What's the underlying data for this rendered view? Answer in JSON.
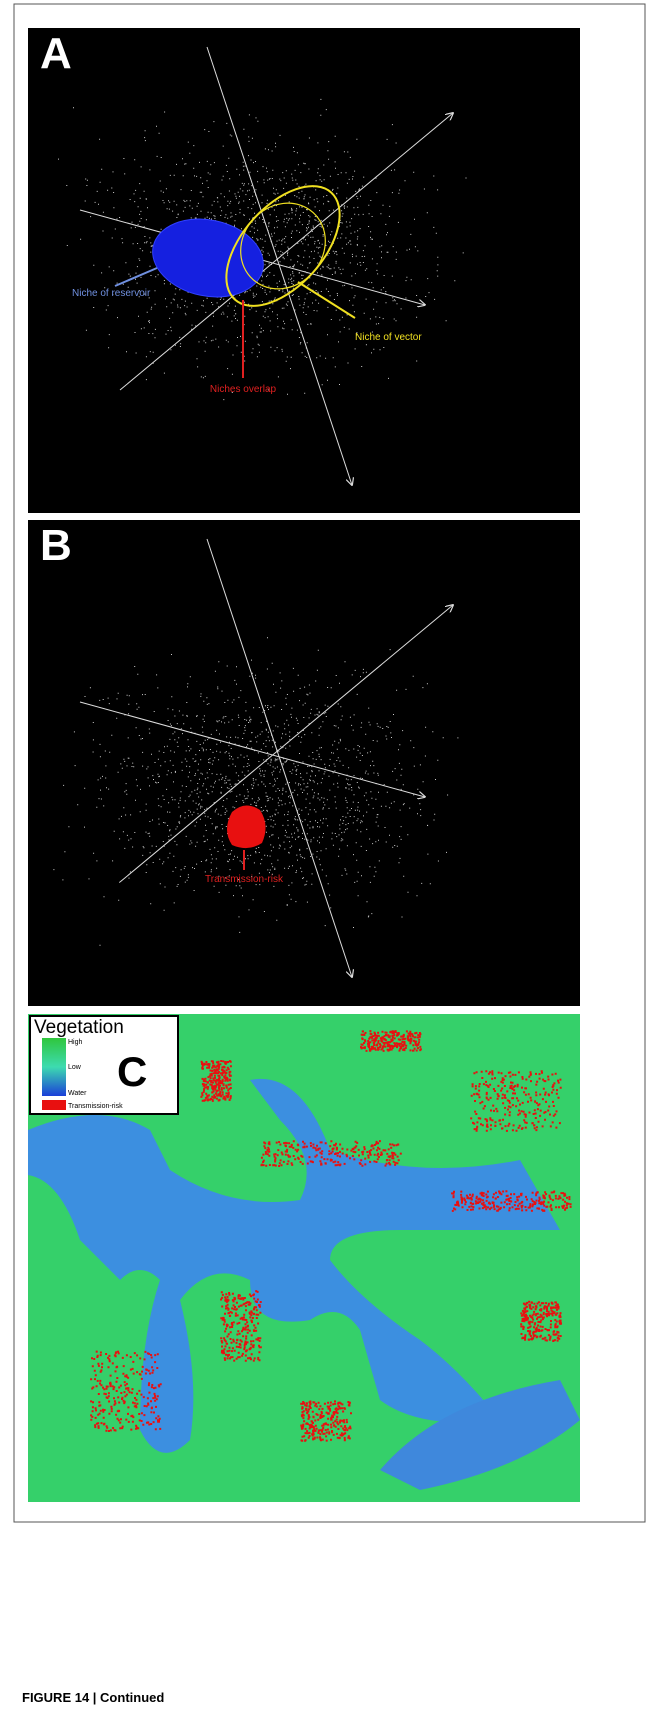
{
  "panels": [
    {
      "label": "A",
      "annotations": [
        "Niche of reservoir",
        "Niche of vector",
        "Niches overlap"
      ]
    },
    {
      "label": "B",
      "annotations": [
        "Transmission-risk"
      ]
    },
    {
      "label": "C"
    }
  ],
  "legend": {
    "title": "Vegetation",
    "levels": [
      "High",
      "Low",
      "Water"
    ],
    "risk": "Transmission-risk"
  },
  "caption": "FIGURE 14 | Continued"
}
